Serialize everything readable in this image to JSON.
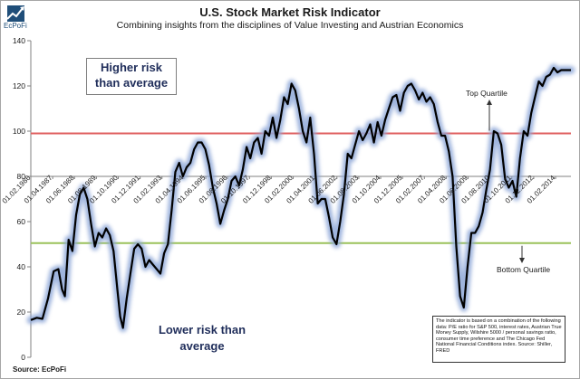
{
  "header": {
    "logo_text": "EcPoFi",
    "title": "U.S. Stock Market Risk Indicator",
    "subtitle": "Combining insights from the disciplines of Value Investing and Austrian Economics",
    "source": "Source: EcPoFi"
  },
  "annotations": {
    "higher_risk": "Higher risk than average",
    "lower_risk": "Lower risk than average",
    "top_quartile": "Top Quartile",
    "bottom_quartile": "Bottom Quartile",
    "note": "The indicator is based on a combination of the following data: P/E ratio for S&P 500, interest rates, Austrian True Money Supply, Wilshire 5000 / personal savings ratio, consumer time preference and The Chicago Fed National Financial Conditions index. Source: Shiller, FRED"
  },
  "colors": {
    "series_line": "#000000",
    "series_glow": "#8fa8d8",
    "top_quartile_line": "#e06060",
    "bottom_quartile_line": "#9bc25a",
    "axis": "#808080"
  },
  "chart_data": {
    "type": "line",
    "title": "U.S. Stock Market Risk Indicator",
    "subtitle": "Combining insights from the disciplines of Value Investing and Austrian Economics",
    "ylim": [
      0,
      140
    ],
    "yticks": [
      0,
      20,
      40,
      60,
      80,
      100,
      120,
      140
    ],
    "x_axis_crosses_at": 80,
    "xlim": [
      1986.08,
      2014.92
    ],
    "x_tick_labels": [
      "01.02.1986",
      "01.04.1987",
      "01.06.1988",
      "01.08.1989",
      "01.10.1990",
      "01.12.1991",
      "01.02.1993",
      "01.04.1994",
      "01.06.1995",
      "01.08.1996",
      "01.10.1997",
      "01.12.1998",
      "01.02.2000",
      "01.04.2001",
      "01.06.2002",
      "01.08.2003",
      "01.10.2004",
      "01.12.2005",
      "01.02.2007",
      "01.04.2008",
      "01.06.2009",
      "01.08.2010",
      "01.10.2011",
      "01.12.2012",
      "01.02.2014"
    ],
    "reference_lines": [
      {
        "label": "Top Quartile",
        "y": 99
      },
      {
        "label": "Bottom Quartile",
        "y": 50.5
      }
    ],
    "series": [
      {
        "x": [
          1986.08,
          1986.4,
          1986.7,
          1987.0,
          1987.3,
          1987.55,
          1987.75,
          1987.9,
          1988.1,
          1988.3,
          1988.5,
          1988.7,
          1988.9,
          1989.1,
          1989.3,
          1989.5,
          1989.7,
          1989.9,
          1990.1,
          1990.3,
          1990.5,
          1990.7,
          1990.85,
          1991.0,
          1991.2,
          1991.4,
          1991.6,
          1991.8,
          1992.0,
          1992.2,
          1992.4,
          1992.6,
          1992.8,
          1993.0,
          1993.2,
          1993.4,
          1993.6,
          1993.8,
          1994.0,
          1994.2,
          1994.4,
          1994.6,
          1994.8,
          1995.0,
          1995.2,
          1995.4,
          1995.6,
          1995.8,
          1996.0,
          1996.2,
          1996.4,
          1996.6,
          1996.8,
          1997.0,
          1997.2,
          1997.4,
          1997.6,
          1997.8,
          1998.0,
          1998.2,
          1998.4,
          1998.6,
          1998.8,
          1999.0,
          1999.2,
          1999.4,
          1999.6,
          1999.8,
          2000.0,
          2000.2,
          2000.4,
          2000.6,
          2000.8,
          2001.0,
          2001.2,
          2001.4,
          2001.6,
          2001.8,
          2002.0,
          2002.2,
          2002.4,
          2002.6,
          2002.8,
          2003.0,
          2003.2,
          2003.4,
          2003.6,
          2003.8,
          2004.0,
          2004.2,
          2004.4,
          2004.6,
          2004.8,
          2005.0,
          2005.2,
          2005.4,
          2005.6,
          2005.8,
          2006.0,
          2006.2,
          2006.4,
          2006.6,
          2006.8,
          2007.0,
          2007.2,
          2007.4,
          2007.6,
          2007.8,
          2008.0,
          2008.2,
          2008.4,
          2008.6,
          2008.8,
          2009.0,
          2009.2,
          2009.4,
          2009.6,
          2009.8,
          2010.0,
          2010.2,
          2010.4,
          2010.6,
          2010.8,
          2011.0,
          2011.2,
          2011.4,
          2011.6,
          2011.8,
          2012.0,
          2012.2,
          2012.4,
          2012.6,
          2012.8,
          2013.0,
          2013.2,
          2013.4,
          2013.6,
          2013.8,
          2014.0,
          2014.2,
          2014.4,
          2014.6,
          2014.92
        ],
        "values": [
          16.5,
          17.5,
          17,
          26,
          38,
          39,
          30,
          27,
          52,
          47,
          63,
          72,
          75,
          70,
          59,
          49,
          55,
          53,
          57,
          54,
          47,
          30,
          18,
          13,
          26,
          37,
          48,
          50,
          48,
          40,
          43,
          41,
          39,
          37,
          46,
          50,
          65,
          82,
          86,
          80,
          84,
          86,
          92,
          95,
          95,
          92,
          85,
          75,
          68,
          59,
          65,
          70,
          78,
          80,
          76,
          83,
          93,
          88,
          95,
          97,
          90,
          100,
          98,
          106,
          97,
          105,
          115,
          112,
          121,
          118,
          110,
          100,
          95,
          106,
          90,
          68,
          70,
          70,
          62,
          53,
          50,
          60,
          72,
          90,
          88,
          94,
          100,
          96,
          99,
          103,
          95,
          104,
          98,
          105,
          110,
          115,
          116,
          109,
          117,
          120,
          121,
          118,
          114,
          117,
          113,
          115,
          112,
          104,
          98,
          98,
          91,
          80,
          49,
          27,
          22,
          40,
          55,
          55,
          58,
          64,
          74,
          83,
          100,
          99,
          94,
          79,
          75,
          78,
          71,
          88,
          100,
          98,
          108,
          115,
          122,
          120,
          124,
          125,
          128,
          126,
          127,
          127,
          127
        ]
      }
    ]
  }
}
